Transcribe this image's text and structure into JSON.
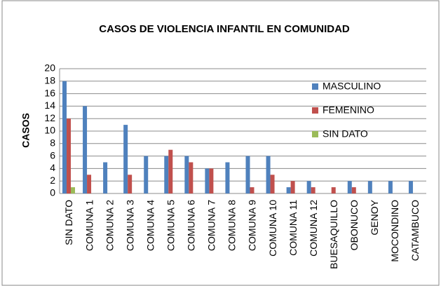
{
  "chart_data": {
    "type": "bar",
    "title": "CASOS DE VIOLENCIA INFANTIL  EN COMUNIDAD",
    "y_label": "CASOS",
    "categories": [
      "SIN DATO",
      "COMUNA 1",
      "COMUNA 2",
      "COMUNA 3",
      "COMUNA 4",
      "COMUNA 5",
      "COMUNA 6",
      "COMUNA 7",
      "COMUNA 8",
      "COMUNA 9",
      "COMUNA 10",
      "COMUNA 11",
      "COMUNA 12",
      "BUESAQUILLO",
      "OBONUCO",
      "GENOY",
      "MOCONDINO",
      "CATAMBUCO"
    ],
    "series": [
      {
        "name": "MASCULINO",
        "color": "#4f81bd",
        "values": [
          18,
          14,
          5,
          11,
          6,
          6,
          6,
          4,
          5,
          6,
          6,
          1,
          2,
          0,
          2,
          2,
          2,
          2
        ]
      },
      {
        "name": "FEMENINO",
        "color": "#c0504d",
        "values": [
          12,
          3,
          0,
          3,
          0,
          7,
          5,
          4,
          0,
          1,
          3,
          2,
          1,
          1,
          1,
          0,
          0,
          0
        ]
      },
      {
        "name": "SIN DATO",
        "color": "#9bbb59",
        "values": [
          1,
          0,
          0,
          0,
          0,
          0,
          0,
          0,
          0,
          0,
          0,
          0,
          0,
          0,
          0,
          0,
          0,
          0
        ]
      }
    ],
    "ylim": [
      0,
      20
    ],
    "yticks": [
      0,
      2,
      4,
      6,
      8,
      10,
      12,
      14,
      16,
      18,
      20
    ],
    "grid": true,
    "legend": "upper right"
  }
}
